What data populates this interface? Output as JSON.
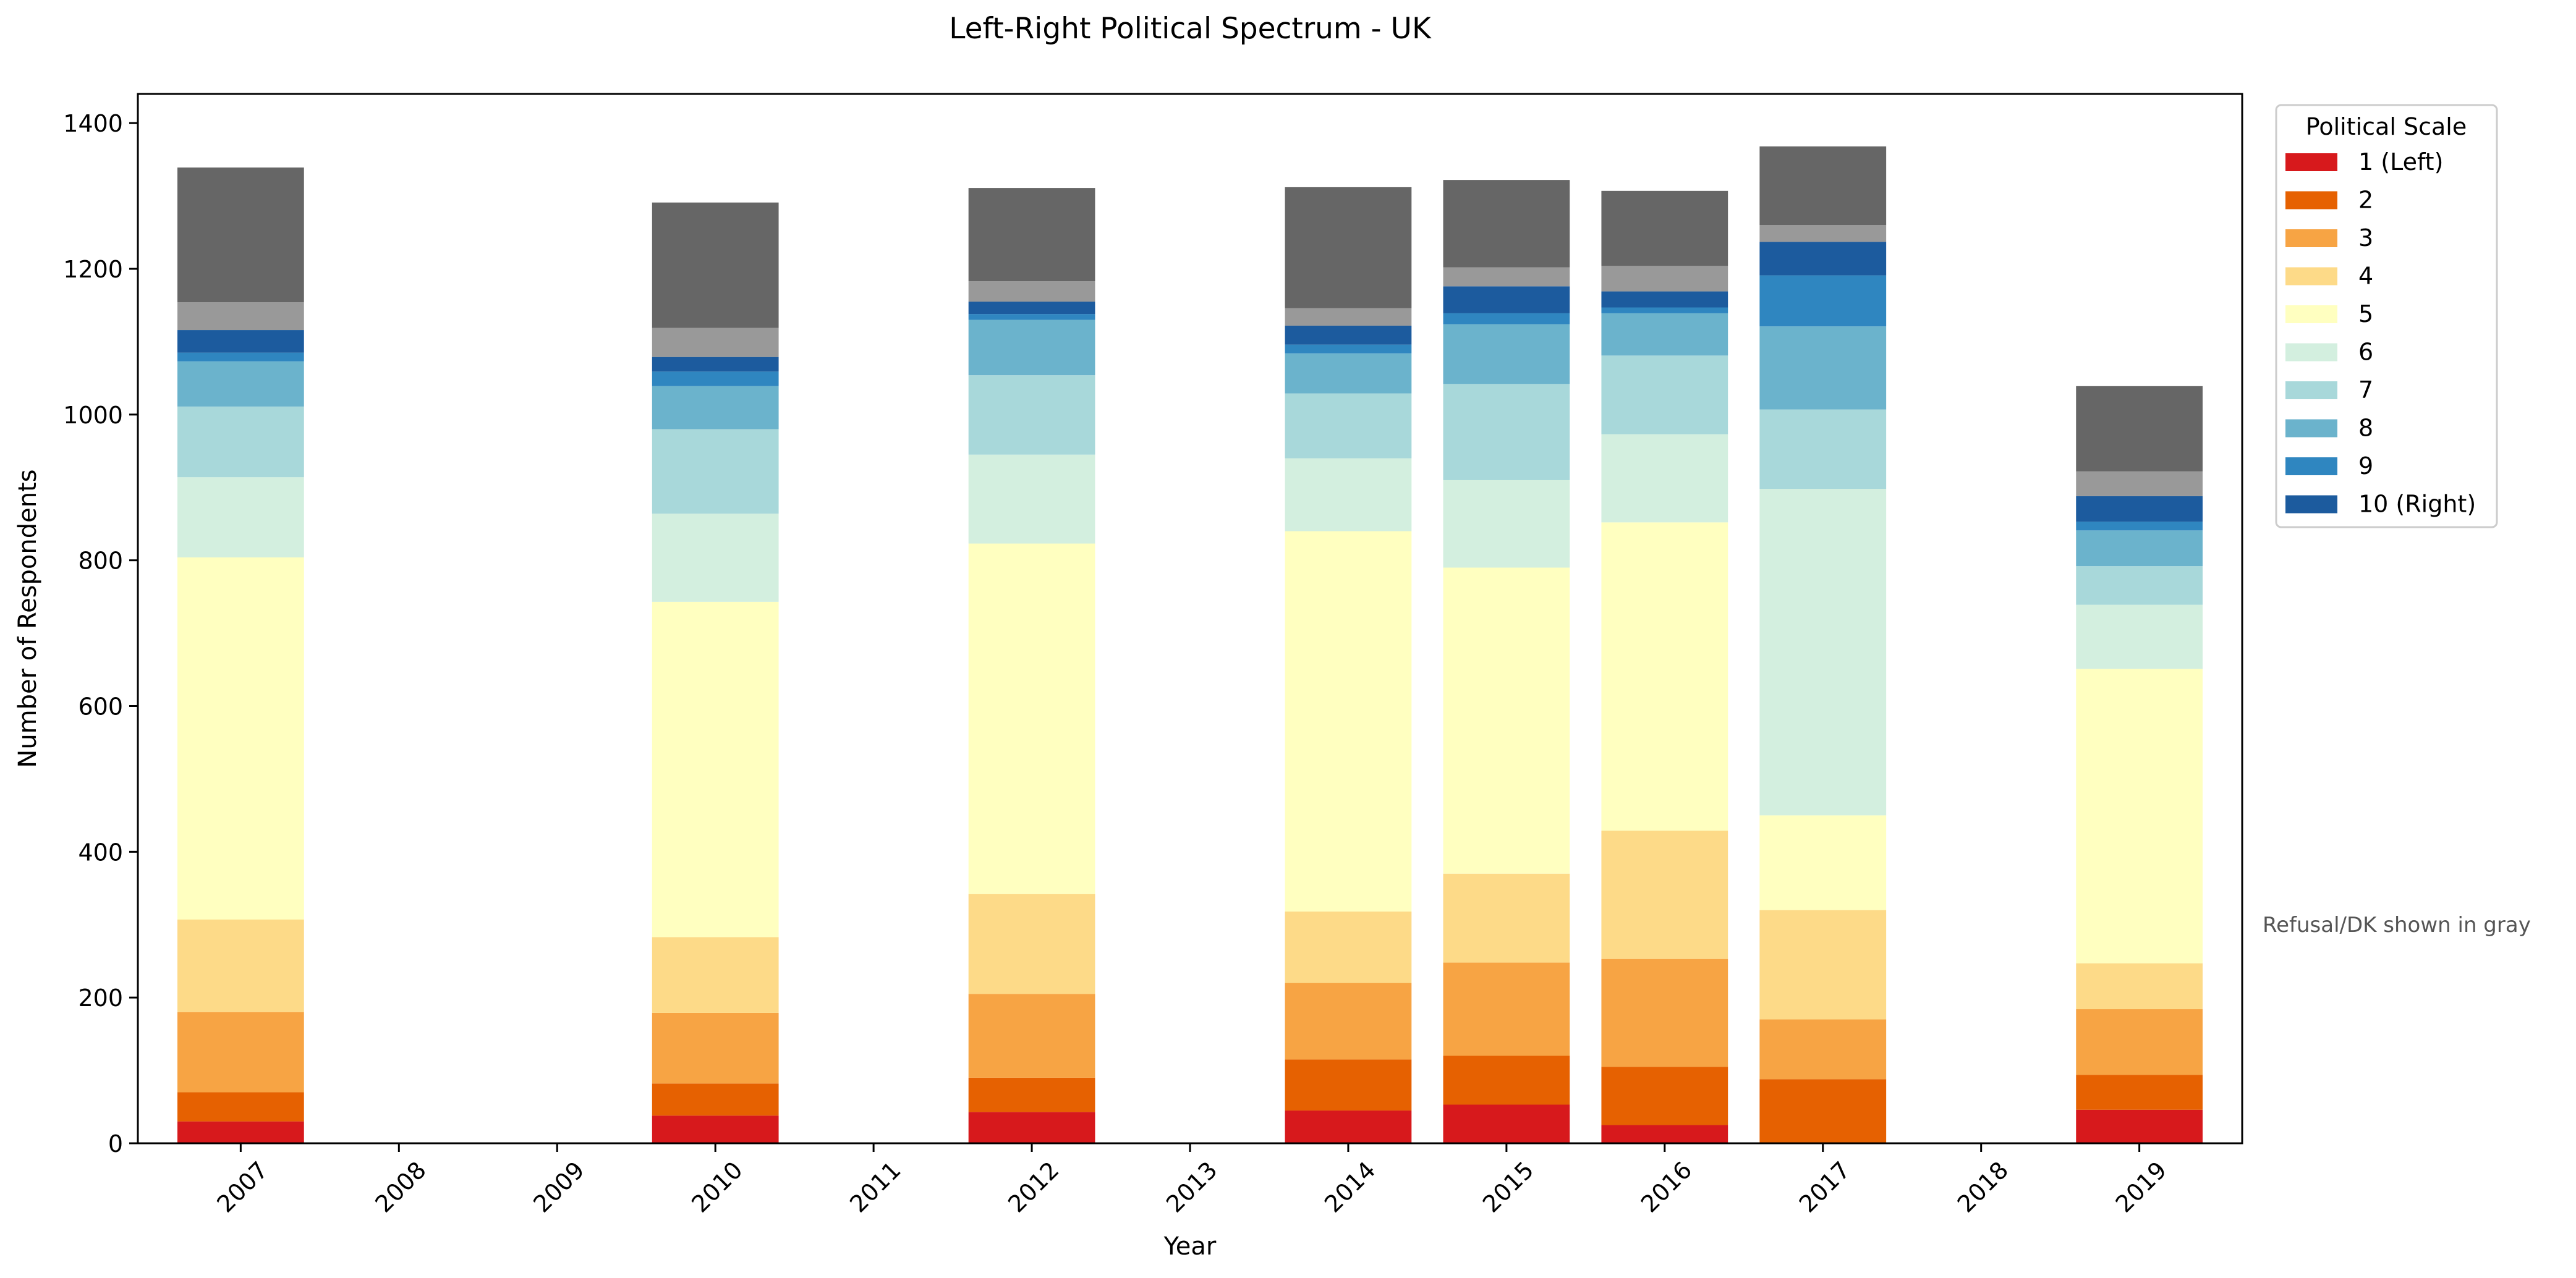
{
  "chart_data": {
    "type": "bar",
    "stacked": true,
    "title": "Left-Right Political Spectrum - UK",
    "xlabel": "Year",
    "ylabel": "Number of Respondents",
    "ylim": [
      0,
      1440
    ],
    "yticks": [
      0,
      200,
      400,
      600,
      800,
      1000,
      1200,
      1400
    ],
    "categories": [
      "2007",
      "2008",
      "2009",
      "2010",
      "2011",
      "2012",
      "2013",
      "2014",
      "2015",
      "2016",
      "2017",
      "2018",
      "2019"
    ],
    "grid": false,
    "legend": {
      "title": "Political Scale",
      "placement": "outside-top-right"
    },
    "note": "Refusal/DK shown in gray",
    "series": [
      {
        "name": "1 (Left)",
        "color": "#d7191c",
        "values": [
          30,
          0,
          0,
          38,
          0,
          43,
          0,
          45,
          53,
          25,
          0,
          0,
          46
        ]
      },
      {
        "name": "2",
        "color": "#e66101",
        "values": [
          40,
          0,
          0,
          44,
          0,
          47,
          0,
          70,
          67,
          80,
          88,
          0,
          48
        ]
      },
      {
        "name": "3",
        "color": "#f7a444",
        "values": [
          110,
          0,
          0,
          97,
          0,
          115,
          0,
          105,
          128,
          148,
          82,
          0,
          90
        ]
      },
      {
        "name": "4",
        "color": "#fdda88",
        "values": [
          127,
          0,
          0,
          104,
          0,
          137,
          0,
          98,
          122,
          176,
          150,
          0,
          63
        ]
      },
      {
        "name": "5",
        "color": "#ffffc0",
        "values": [
          497,
          0,
          0,
          460,
          0,
          481,
          0,
          522,
          420,
          423,
          130,
          0,
          404
        ]
      },
      {
        "name": "6",
        "color": "#d3efdf",
        "values": [
          110,
          0,
          0,
          121,
          0,
          122,
          0,
          100,
          120,
          121,
          448,
          0,
          88
        ]
      },
      {
        "name": "7",
        "color": "#a8d8da",
        "values": [
          97,
          0,
          0,
          116,
          0,
          109,
          0,
          89,
          132,
          108,
          109,
          0,
          53
        ]
      },
      {
        "name": "8",
        "color": "#6bb3cc",
        "values": [
          62,
          0,
          0,
          59,
          0,
          76,
          0,
          55,
          82,
          58,
          114,
          0,
          49
        ]
      },
      {
        "name": "9",
        "color": "#2f86c0",
        "values": [
          12,
          0,
          0,
          20,
          0,
          8,
          0,
          12,
          15,
          8,
          70,
          0,
          12
        ]
      },
      {
        "name": "10 (Right)",
        "color": "#1c5b9e",
        "values": [
          31,
          0,
          0,
          20,
          0,
          17,
          0,
          26,
          37,
          22,
          46,
          0,
          35
        ]
      }
    ],
    "extra_series": [
      {
        "color": "#999999",
        "values": [
          38,
          0,
          0,
          40,
          0,
          28,
          0,
          24,
          26,
          35,
          23,
          0,
          34
        ]
      },
      {
        "color": "#666666",
        "values": [
          185,
          0,
          0,
          172,
          0,
          128,
          0,
          166,
          120,
          103,
          108,
          0,
          117
        ]
      }
    ]
  }
}
